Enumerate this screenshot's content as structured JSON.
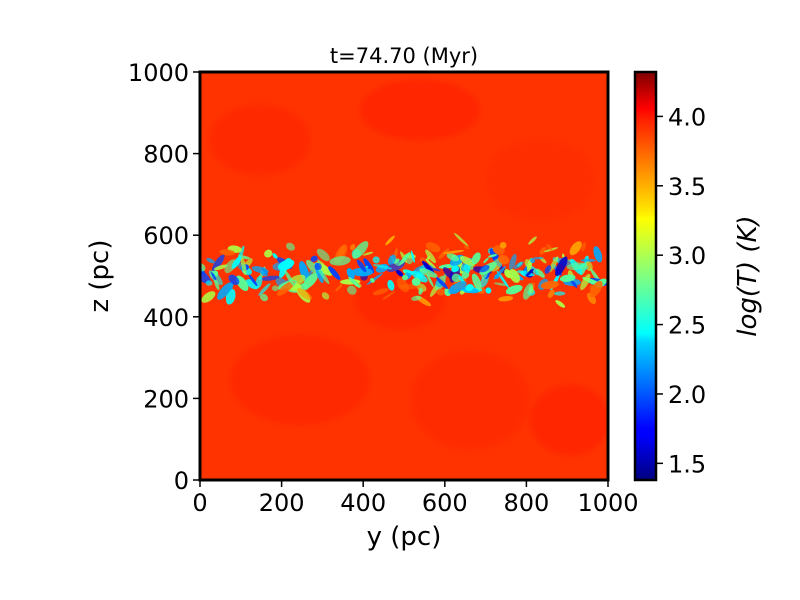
{
  "chart_data": {
    "type": "heatmap",
    "title": "t=74.70 (Myr)",
    "xlabel": "y (pc)",
    "ylabel": "z (pc)",
    "xlim": [
      0,
      1000
    ],
    "ylim": [
      0,
      1000
    ],
    "xticks": [
      0,
      200,
      400,
      600,
      800,
      1000
    ],
    "yticks": [
      0,
      200,
      400,
      600,
      800,
      1000
    ],
    "colorbar": {
      "label": "log(T) (K)",
      "range": [
        1.38,
        4.32
      ],
      "ticks": [
        1.5,
        2.0,
        2.5,
        3.0,
        3.5,
        4.0
      ],
      "tick_labels": [
        "1.5",
        "2.0",
        "2.5",
        "3.0",
        "3.5",
        "4.0"
      ],
      "colormap": "jet"
    },
    "field": {
      "background_logT": 3.95,
      "cold_layer_z_range": [
        420,
        600
      ],
      "cold_layer_logT_min": 1.4
    },
    "grid": false
  },
  "colors": {
    "background_field": "#ff3300",
    "frame": "#000000"
  }
}
